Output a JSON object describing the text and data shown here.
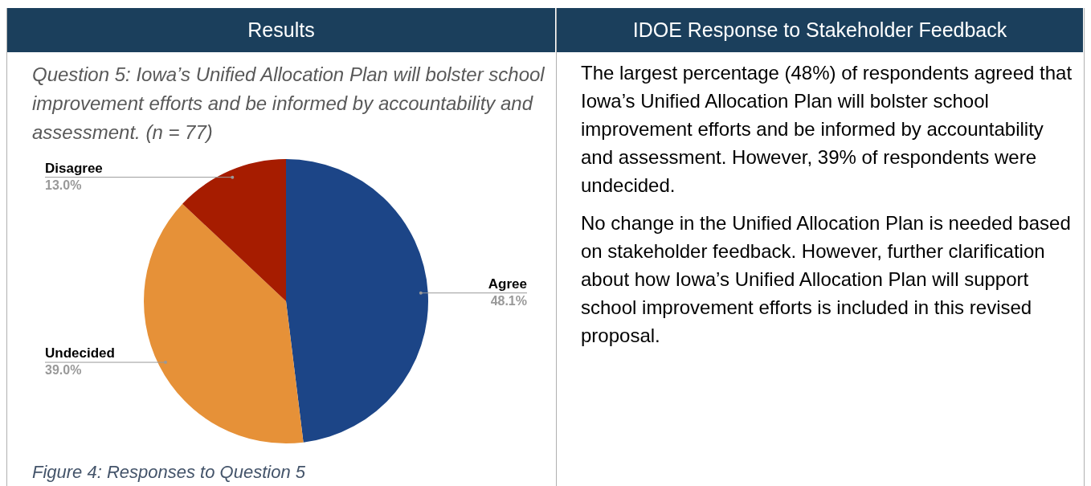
{
  "chart_data": [
    {
      "type": "pie",
      "title": "Question 5: Iowa’s Unified Allocation Plan will bolster school improvement efforts and be informed by accountability and assessment. (n = 77)",
      "categories": [
        "Agree",
        "Undecided",
        "Disagree"
      ],
      "values": [
        48.1,
        39.0,
        13.0
      ],
      "colors": [
        "#1c4587",
        "#e69138",
        "#a61c00"
      ],
      "value_labels": [
        "48.1%",
        "39.0%",
        "13.0%"
      ],
      "annotations": [
        "Results",
        "Figure 4: Responses to Question 5"
      ]
    },
    {
      "type": "other",
      "title": "IDOE Response to Stakeholder Feedback",
      "annotations": [
        "The largest percentage (48%) of respondents agreed that Iowa’s Unified Allocation Plan will bolster school improvement efforts and be informed by accountability and assessment. However, 39% of respondents were undecided.",
        "No change in the Unified Allocation Plan is needed based on stakeholder feedback. However, further clarification about how Iowa’s Unified Allocation Plan will support school improvement efforts is included in this revised proposal."
      ]
    }
  ]
}
